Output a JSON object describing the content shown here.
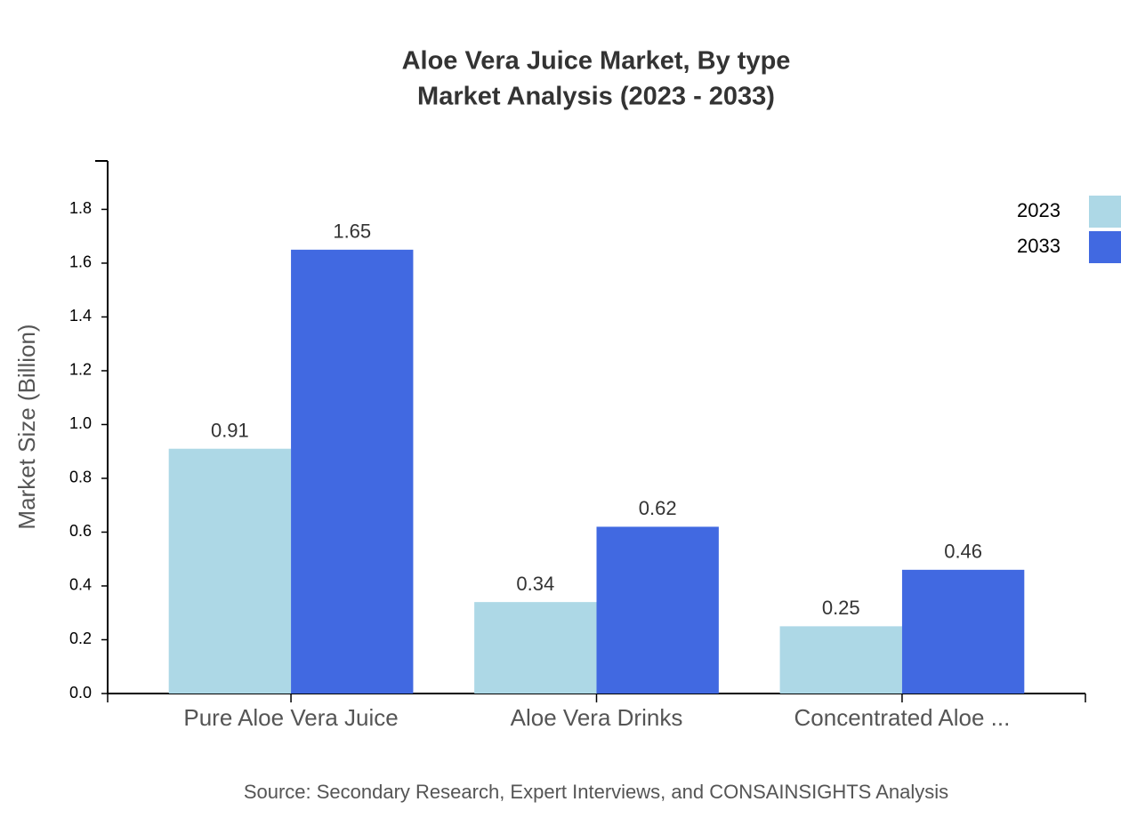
{
  "chart_data": {
    "type": "bar",
    "title": [
      "Aloe Vera Juice Market, By type",
      "Market Analysis (2023 - 2033)"
    ],
    "y_label": "Market Size (Billion)",
    "source": "Source: Secondary Research, Expert Interviews, and CONSAINSIGHTS Analysis",
    "categories": [
      "Pure Aloe Vera Juice",
      "Aloe Vera Drinks",
      "Concentrated Aloe ..."
    ],
    "series": [
      {
        "name": "2023",
        "color": "#add8e6",
        "values": [
          0.91,
          0.34,
          0.25
        ]
      },
      {
        "name": "2033",
        "color": "#4169e1",
        "values": [
          1.65,
          0.62,
          0.46
        ]
      }
    ],
    "ylim": [
      0,
      1.98
    ],
    "yticks": [
      {
        "value": 0,
        "label": "0.0"
      },
      0.2,
      0.4,
      0.6,
      0.8,
      {
        "value": 1,
        "label": "1.0"
      },
      1.2,
      1.4,
      1.6,
      1.8
    ],
    "legend": "top-right"
  }
}
